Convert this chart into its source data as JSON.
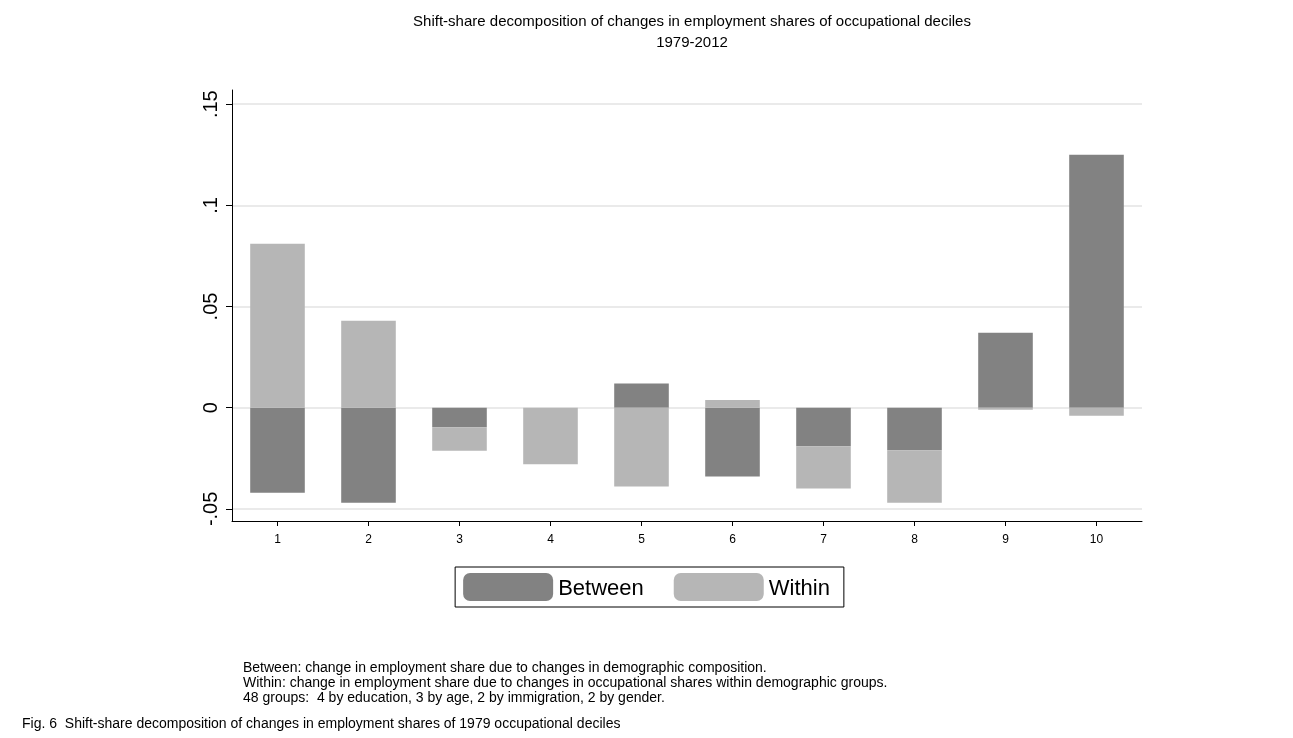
{
  "chart_data": {
    "type": "bar",
    "title": "Shift-share decomposition of changes in employment shares of occupational deciles",
    "subtitle": "1979-2012",
    "categories": [
      "1",
      "2",
      "3",
      "4",
      "5",
      "6",
      "7",
      "8",
      "9",
      "10"
    ],
    "series": [
      {
        "name": "Between",
        "color": "#828282",
        "values": [
          -0.042,
          -0.047,
          -0.0097,
          0,
          0.012,
          -0.034,
          -0.019,
          -0.021,
          0.037,
          0.125
        ]
      },
      {
        "name": "Within",
        "color": "#b6b6b6",
        "values": [
          0.081,
          0.043,
          -0.0116,
          -0.028,
          -0.039,
          0.0038,
          -0.021,
          -0.026,
          -0.001,
          -0.004
        ]
      }
    ],
    "stacked": true,
    "ylim": [
      -0.056,
      0.157
    ],
    "yticks": [
      {
        "value": -0.05,
        "label": "-.05"
      },
      0,
      {
        "value": 0.05,
        "label": ".05"
      },
      {
        "value": 0.1,
        "label": ".1"
      },
      {
        "value": 0.15,
        "label": ".15"
      }
    ],
    "grid": "y",
    "legend": "bottom",
    "annotations": [
      "Between: change in employment share due to changes in demographic composition.",
      "Within: change in employment share due to changes in occupational shares within demographic groups.",
      "48 groups:  4 by education, 3 by age, 2 by immigration, 2 by gender.",
      "Fig. 6  Shift-share decomposition of changes in employment shares of 1979 occupational deciles"
    ]
  }
}
